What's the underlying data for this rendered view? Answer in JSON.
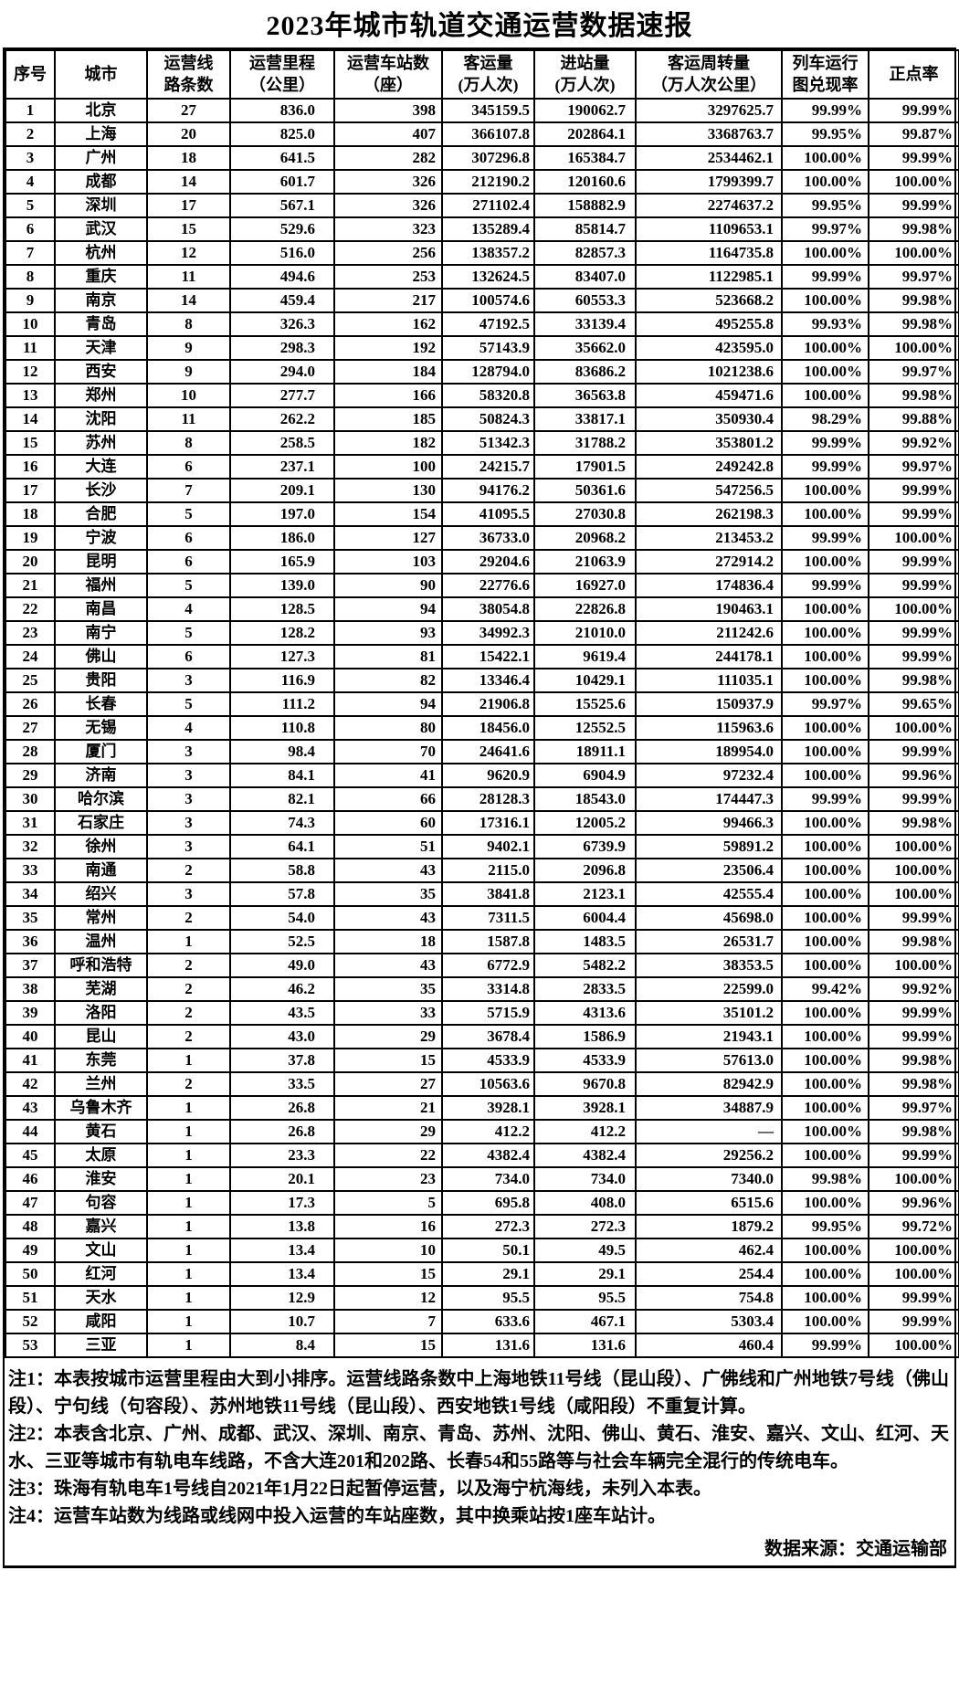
{
  "title": "2023年城市轨道交通运营数据速报",
  "table": {
    "headers": [
      "序号",
      "城市",
      "运营线\n路条数",
      "运营里程\n（公里）",
      "运营车站数\n（座）",
      "客运量\n(万人次)",
      "进站量\n(万人次)",
      "客运周转量\n（万人次公里）",
      "列车运行\n图兑现率",
      "正点率"
    ],
    "rows": [
      [
        "1",
        "北京",
        "27",
        "836.0",
        "398",
        "345159.5",
        "190062.7",
        "3297625.7",
        "99.99%",
        "99.99%"
      ],
      [
        "2",
        "上海",
        "20",
        "825.0",
        "407",
        "366107.8",
        "202864.1",
        "3368763.7",
        "99.95%",
        "99.87%"
      ],
      [
        "3",
        "广州",
        "18",
        "641.5",
        "282",
        "307296.8",
        "165384.7",
        "2534462.1",
        "100.00%",
        "99.99%"
      ],
      [
        "4",
        "成都",
        "14",
        "601.7",
        "326",
        "212190.2",
        "120160.6",
        "1799399.7",
        "100.00%",
        "100.00%"
      ],
      [
        "5",
        "深圳",
        "17",
        "567.1",
        "326",
        "271102.4",
        "158882.9",
        "2274637.2",
        "99.95%",
        "99.99%"
      ],
      [
        "6",
        "武汉",
        "15",
        "529.6",
        "323",
        "135289.4",
        "85814.7",
        "1109653.1",
        "99.97%",
        "99.98%"
      ],
      [
        "7",
        "杭州",
        "12",
        "516.0",
        "256",
        "138357.2",
        "82857.3",
        "1164735.8",
        "100.00%",
        "100.00%"
      ],
      [
        "8",
        "重庆",
        "11",
        "494.6",
        "253",
        "132624.5",
        "83407.0",
        "1122985.1",
        "99.99%",
        "99.97%"
      ],
      [
        "9",
        "南京",
        "14",
        "459.4",
        "217",
        "100574.6",
        "60553.3",
        "523668.2",
        "100.00%",
        "99.98%"
      ],
      [
        "10",
        "青岛",
        "8",
        "326.3",
        "162",
        "47192.5",
        "33139.4",
        "495255.8",
        "99.93%",
        "99.98%"
      ],
      [
        "11",
        "天津",
        "9",
        "298.3",
        "192",
        "57143.9",
        "35662.0",
        "423595.0",
        "100.00%",
        "100.00%"
      ],
      [
        "12",
        "西安",
        "9",
        "294.0",
        "184",
        "128794.0",
        "83686.2",
        "1021238.6",
        "100.00%",
        "99.97%"
      ],
      [
        "13",
        "郑州",
        "10",
        "277.7",
        "166",
        "58320.8",
        "36563.8",
        "459471.6",
        "100.00%",
        "99.98%"
      ],
      [
        "14",
        "沈阳",
        "11",
        "262.2",
        "185",
        "50824.3",
        "33817.1",
        "350930.4",
        "98.29%",
        "99.88%"
      ],
      [
        "15",
        "苏州",
        "8",
        "258.5",
        "182",
        "51342.3",
        "31788.2",
        "353801.2",
        "99.99%",
        "99.92%"
      ],
      [
        "16",
        "大连",
        "6",
        "237.1",
        "100",
        "24215.7",
        "17901.5",
        "249242.8",
        "99.99%",
        "99.97%"
      ],
      [
        "17",
        "长沙",
        "7",
        "209.1",
        "130",
        "94176.2",
        "50361.6",
        "547256.5",
        "100.00%",
        "99.99%"
      ],
      [
        "18",
        "合肥",
        "5",
        "197.0",
        "154",
        "41095.5",
        "27030.8",
        "262198.3",
        "100.00%",
        "99.99%"
      ],
      [
        "19",
        "宁波",
        "6",
        "186.0",
        "127",
        "36733.0",
        "20968.2",
        "213453.2",
        "99.99%",
        "100.00%"
      ],
      [
        "20",
        "昆明",
        "6",
        "165.9",
        "103",
        "29204.6",
        "21063.9",
        "272914.2",
        "100.00%",
        "99.99%"
      ],
      [
        "21",
        "福州",
        "5",
        "139.0",
        "90",
        "22776.6",
        "16927.0",
        "174836.4",
        "99.99%",
        "99.99%"
      ],
      [
        "22",
        "南昌",
        "4",
        "128.5",
        "94",
        "38054.8",
        "22826.8",
        "190463.1",
        "100.00%",
        "100.00%"
      ],
      [
        "23",
        "南宁",
        "5",
        "128.2",
        "93",
        "34992.3",
        "21010.0",
        "211242.6",
        "100.00%",
        "99.99%"
      ],
      [
        "24",
        "佛山",
        "6",
        "127.3",
        "81",
        "15422.1",
        "9619.4",
        "244178.1",
        "100.00%",
        "99.99%"
      ],
      [
        "25",
        "贵阳",
        "3",
        "116.9",
        "82",
        "13346.4",
        "10429.1",
        "111035.1",
        "100.00%",
        "99.98%"
      ],
      [
        "26",
        "长春",
        "5",
        "111.2",
        "94",
        "21906.8",
        "15525.6",
        "150937.9",
        "99.97%",
        "99.65%"
      ],
      [
        "27",
        "无锡",
        "4",
        "110.8",
        "80",
        "18456.0",
        "12552.5",
        "115963.6",
        "100.00%",
        "100.00%"
      ],
      [
        "28",
        "厦门",
        "3",
        "98.4",
        "70",
        "24641.6",
        "18911.1",
        "189954.0",
        "100.00%",
        "99.99%"
      ],
      [
        "29",
        "济南",
        "3",
        "84.1",
        "41",
        "9620.9",
        "6904.9",
        "97232.4",
        "100.00%",
        "99.96%"
      ],
      [
        "30",
        "哈尔滨",
        "3",
        "82.1",
        "66",
        "28128.3",
        "18543.0",
        "174447.3",
        "99.99%",
        "99.99%"
      ],
      [
        "31",
        "石家庄",
        "3",
        "74.3",
        "60",
        "17316.1",
        "12005.2",
        "99466.3",
        "100.00%",
        "99.98%"
      ],
      [
        "32",
        "徐州",
        "3",
        "64.1",
        "51",
        "9402.1",
        "6739.9",
        "59891.2",
        "100.00%",
        "100.00%"
      ],
      [
        "33",
        "南通",
        "2",
        "58.8",
        "43",
        "2115.0",
        "2096.8",
        "23506.4",
        "100.00%",
        "100.00%"
      ],
      [
        "34",
        "绍兴",
        "3",
        "57.8",
        "35",
        "3841.8",
        "2123.1",
        "42555.4",
        "100.00%",
        "100.00%"
      ],
      [
        "35",
        "常州",
        "2",
        "54.0",
        "43",
        "7311.5",
        "6004.4",
        "45698.0",
        "100.00%",
        "99.99%"
      ],
      [
        "36",
        "温州",
        "1",
        "52.5",
        "18",
        "1587.8",
        "1483.5",
        "26531.7",
        "100.00%",
        "99.98%"
      ],
      [
        "37",
        "呼和浩特",
        "2",
        "49.0",
        "43",
        "6772.9",
        "5482.2",
        "38353.5",
        "100.00%",
        "100.00%"
      ],
      [
        "38",
        "芜湖",
        "2",
        "46.2",
        "35",
        "3314.8",
        "2833.5",
        "22599.0",
        "99.42%",
        "99.92%"
      ],
      [
        "39",
        "洛阳",
        "2",
        "43.5",
        "33",
        "5715.9",
        "4313.6",
        "35101.2",
        "100.00%",
        "99.99%"
      ],
      [
        "40",
        "昆山",
        "2",
        "43.0",
        "29",
        "3678.4",
        "1586.9",
        "21943.1",
        "100.00%",
        "99.99%"
      ],
      [
        "41",
        "东莞",
        "1",
        "37.8",
        "15",
        "4533.9",
        "4533.9",
        "57613.0",
        "100.00%",
        "99.98%"
      ],
      [
        "42",
        "兰州",
        "2",
        "33.5",
        "27",
        "10563.6",
        "9670.8",
        "82942.9",
        "100.00%",
        "99.98%"
      ],
      [
        "43",
        "乌鲁木齐",
        "1",
        "26.8",
        "21",
        "3928.1",
        "3928.1",
        "34887.9",
        "100.00%",
        "99.97%"
      ],
      [
        "44",
        "黄石",
        "1",
        "26.8",
        "29",
        "412.2",
        "412.2",
        "—",
        "100.00%",
        "99.98%"
      ],
      [
        "45",
        "太原",
        "1",
        "23.3",
        "22",
        "4382.4",
        "4382.4",
        "29256.2",
        "100.00%",
        "99.99%"
      ],
      [
        "46",
        "淮安",
        "1",
        "20.1",
        "23",
        "734.0",
        "734.0",
        "7340.0",
        "99.98%",
        "100.00%"
      ],
      [
        "47",
        "句容",
        "1",
        "17.3",
        "5",
        "695.8",
        "408.0",
        "6515.6",
        "100.00%",
        "99.96%"
      ],
      [
        "48",
        "嘉兴",
        "1",
        "13.8",
        "16",
        "272.3",
        "272.3",
        "1879.2",
        "99.95%",
        "99.72%"
      ],
      [
        "49",
        "文山",
        "1",
        "13.4",
        "10",
        "50.1",
        "49.5",
        "462.4",
        "100.00%",
        "100.00%"
      ],
      [
        "50",
        "红河",
        "1",
        "13.4",
        "15",
        "29.1",
        "29.1",
        "254.4",
        "100.00%",
        "100.00%"
      ],
      [
        "51",
        "天水",
        "1",
        "12.9",
        "12",
        "95.5",
        "95.5",
        "754.8",
        "100.00%",
        "99.99%"
      ],
      [
        "52",
        "咸阳",
        "1",
        "10.7",
        "7",
        "633.6",
        "467.1",
        "5303.4",
        "100.00%",
        "99.99%"
      ],
      [
        "53",
        "三亚",
        "1",
        "8.4",
        "15",
        "131.6",
        "131.6",
        "460.4",
        "99.99%",
        "100.00%"
      ]
    ]
  },
  "notes": [
    "注1：本表按城市运营里程由大到小排序。运营线路条数中上海地铁11号线（昆山段）、广佛线和广州地铁7号线（佛山段）、宁句线（句容段）、苏州地铁11号线（昆山段）、西安地铁1号线（咸阳段）不重复计算。",
    "注2：本表含北京、广州、成都、武汉、深圳、南京、青岛、苏州、沈阳、佛山、黄石、淮安、嘉兴、文山、红河、天水、三亚等城市有轨电车线路，不含大连201和202路、长春54和55路等与社会车辆完全混行的传统电车。",
    "注3：珠海有轨电车1号线自2021年1月22日起暂停运营，以及海宁杭海线，未列入本表。",
    "注4：运营车站数为线路或线网中投入运营的车站座数，其中换乘站按1座车站计。"
  ],
  "source": "数据来源：交通运输部"
}
